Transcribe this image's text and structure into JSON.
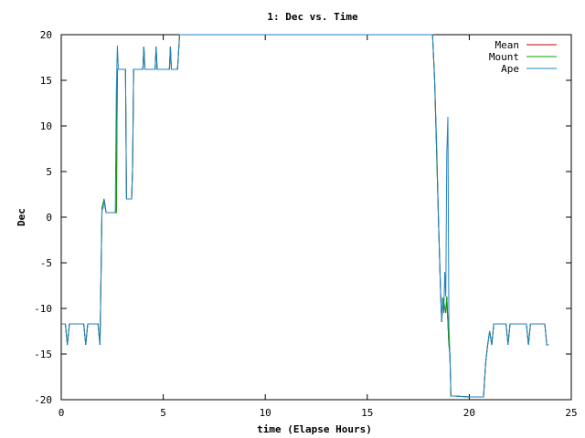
{
  "chart_data": {
    "type": "line",
    "title": "1: Dec vs. Time",
    "xlabel": "time (Elapse Hours)",
    "ylabel": "Dec",
    "xlim": [
      0,
      25
    ],
    "ylim": [
      -20,
      20
    ],
    "x_ticks": [
      "0",
      "5",
      "10",
      "15",
      "20",
      "25"
    ],
    "y_ticks": [
      "20",
      "15",
      "10",
      "5",
      "0",
      "-5",
      "-10",
      "-15",
      "-20"
    ],
    "grid": false,
    "legend_position": "top-right",
    "series": [
      {
        "name": "Mean",
        "color": "#cc0000",
        "x": [
          0,
          0.2,
          0.3,
          0.4,
          0.5,
          1.1,
          1.2,
          1.3,
          1.4,
          1.8,
          1.9,
          2.0,
          2.1,
          2.2,
          2.3,
          2.7,
          2.75,
          2.8,
          3.0,
          3.15,
          3.2,
          3.45,
          3.5,
          3.55,
          3.6,
          3.7,
          3.8,
          4.0,
          4.05,
          4.1,
          4.2,
          4.3,
          4.6,
          4.65,
          4.7,
          4.8,
          4.9,
          5.3,
          5.35,
          5.4,
          5.5,
          5.7,
          5.8,
          5.85,
          5.9,
          18.2,
          18.3,
          18.5,
          18.6,
          18.65,
          18.7,
          18.85,
          18.9,
          19.0,
          19.05,
          19.1,
          19.15,
          19.2,
          19.3,
          20.0,
          20.7,
          20.8,
          20.9,
          21.0,
          21.1,
          21.2,
          21.3,
          21.8,
          21.9,
          22.0,
          22.1,
          22.2,
          22.8,
          22.9,
          23.0,
          23.1,
          23.2,
          23.7,
          23.8,
          23.9
        ],
        "y": [
          -11.7,
          -11.7,
          -14.0,
          -11.7,
          -11.7,
          -11.7,
          -14.0,
          -11.7,
          -11.7,
          -11.7,
          -14.0,
          1.0,
          2.0,
          0.5,
          0.5,
          0.5,
          16.2,
          16.2,
          16.2,
          16.2,
          2.0,
          2.0,
          5.5,
          16.2,
          16.2,
          16.2,
          16.2,
          16.2,
          18.7,
          16.2,
          16.2,
          16.2,
          16.2,
          18.7,
          16.2,
          16.2,
          16.2,
          16.2,
          18.7,
          16.2,
          16.2,
          16.2,
          20.0,
          20.0,
          20.0,
          20.0,
          15.0,
          -1.0,
          -8.8,
          -11.5,
          -8.8,
          -10.5,
          -8.7,
          -14.0,
          -15.0,
          -19.6,
          -19.6,
          -19.6,
          -19.6,
          -19.7,
          -19.7,
          -16.0,
          -14.0,
          -12.5,
          -14.0,
          -11.7,
          -11.7,
          -11.7,
          -14.0,
          -11.7,
          -11.7,
          -11.7,
          -11.7,
          -14.0,
          -11.7,
          -11.7,
          -11.7,
          -11.7,
          -14.0,
          -14.0
        ]
      },
      {
        "name": "Mount",
        "color": "#00a000",
        "x": [
          0,
          0.2,
          0.3,
          0.4,
          0.5,
          1.1,
          1.2,
          1.3,
          1.4,
          1.8,
          1.9,
          2.0,
          2.1,
          2.2,
          2.3,
          2.7,
          2.75,
          2.8,
          3.0,
          3.15,
          3.2,
          3.45,
          3.5,
          3.55,
          3.6,
          3.7,
          3.8,
          4.0,
          4.05,
          4.1,
          4.2,
          4.3,
          4.6,
          4.65,
          4.7,
          4.8,
          4.9,
          5.3,
          5.35,
          5.4,
          5.5,
          5.7,
          5.8,
          5.85,
          5.9,
          18.2,
          18.3,
          18.5,
          18.6,
          18.65,
          18.7,
          18.85,
          18.9,
          19.0,
          19.05,
          19.1,
          19.15,
          19.2,
          19.3,
          20.0,
          20.7,
          20.8,
          20.9,
          21.0,
          21.1,
          21.2,
          21.3,
          21.8,
          21.9,
          22.0,
          22.1,
          22.2,
          22.8,
          22.9,
          23.0,
          23.1,
          23.2,
          23.7,
          23.8,
          23.9
        ],
        "y": [
          -11.7,
          -11.7,
          -14.0,
          -11.7,
          -11.7,
          -11.7,
          -14.0,
          -11.7,
          -11.7,
          -11.7,
          -14.0,
          1.0,
          2.0,
          0.5,
          0.5,
          0.5,
          16.2,
          16.2,
          16.2,
          16.2,
          2.0,
          2.0,
          5.5,
          16.2,
          16.2,
          16.2,
          16.2,
          16.2,
          18.7,
          16.2,
          16.2,
          16.2,
          16.2,
          18.7,
          16.2,
          16.2,
          16.2,
          16.2,
          18.7,
          16.2,
          16.2,
          16.2,
          20.0,
          20.0,
          20.0,
          20.0,
          15.0,
          -1.0,
          -8.8,
          -11.5,
          -8.8,
          -10.5,
          -8.7,
          -14.0,
          -15.0,
          -19.6,
          -19.6,
          -19.6,
          -19.6,
          -19.7,
          -19.7,
          -16.0,
          -14.0,
          -12.5,
          -14.0,
          -11.7,
          -11.7,
          -11.7,
          -14.0,
          -11.7,
          -11.7,
          -11.7,
          -11.7,
          -14.0,
          -11.7,
          -11.7,
          -11.7,
          -11.7,
          -14.0,
          -14.0
        ]
      },
      {
        "name": "Ape",
        "color": "#2080c8",
        "x": [
          0,
          0.2,
          0.3,
          0.4,
          0.5,
          1.1,
          1.2,
          1.3,
          1.4,
          1.8,
          1.9,
          2.0,
          2.05,
          2.1,
          2.15,
          2.2,
          2.3,
          2.65,
          2.7,
          2.75,
          2.8,
          2.85,
          3.0,
          3.15,
          3.2,
          3.45,
          3.5,
          3.55,
          3.6,
          3.7,
          3.8,
          4.0,
          4.05,
          4.1,
          4.2,
          4.3,
          4.6,
          4.65,
          4.7,
          4.8,
          4.9,
          5.3,
          5.35,
          5.4,
          5.5,
          5.7,
          5.8,
          5.85,
          5.9,
          18.2,
          18.3,
          18.4,
          18.5,
          18.55,
          18.6,
          18.65,
          18.7,
          18.75,
          18.8,
          18.85,
          18.9,
          18.95,
          19.0,
          19.05,
          19.1,
          19.15,
          19.2,
          19.3,
          20.0,
          20.7,
          20.8,
          20.9,
          21.0,
          21.1,
          21.2,
          21.3,
          21.8,
          21.9,
          22.0,
          22.1,
          22.2,
          22.8,
          22.9,
          23.0,
          23.1,
          23.2,
          23.7,
          23.8,
          23.9
        ],
        "y": [
          -11.7,
          -11.7,
          -14.0,
          -11.7,
          -11.7,
          -11.7,
          -14.0,
          -11.7,
          -11.7,
          -11.7,
          -14.0,
          0.8,
          1.0,
          2.0,
          1.0,
          0.5,
          0.5,
          0.5,
          14.0,
          18.8,
          16.2,
          16.2,
          16.2,
          16.2,
          2.0,
          2.0,
          5.5,
          16.2,
          16.2,
          16.2,
          16.2,
          16.2,
          18.7,
          16.2,
          16.2,
          16.2,
          16.2,
          18.7,
          16.2,
          16.2,
          16.2,
          16.2,
          18.7,
          16.2,
          16.2,
          16.2,
          20.0,
          20.0,
          20.0,
          20.0,
          15.0,
          8.0,
          -1.0,
          -5.0,
          -8.8,
          -11.5,
          -9.0,
          -10.5,
          -6.0,
          -8.7,
          7.0,
          11.0,
          -12.0,
          -15.0,
          -19.6,
          -19.6,
          -19.6,
          -19.6,
          -19.7,
          -19.7,
          -16.0,
          -14.0,
          -12.5,
          -14.0,
          -11.7,
          -11.7,
          -11.7,
          -14.0,
          -11.7,
          -11.7,
          -11.7,
          -11.7,
          -14.0,
          -11.7,
          -11.7,
          -11.7,
          -11.7,
          -14.0,
          -14.0
        ]
      }
    ]
  }
}
